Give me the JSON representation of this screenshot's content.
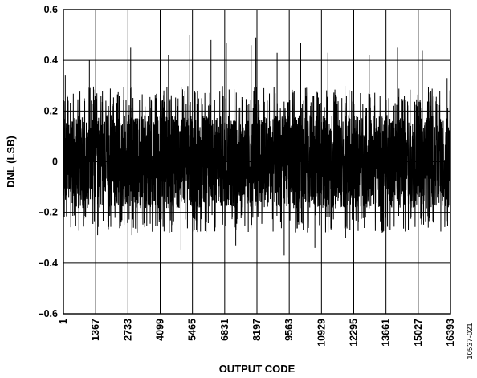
{
  "chart_data": {
    "type": "line",
    "title": "",
    "xlabel": "OUTPUT CODE",
    "ylabel": "DNL (LSB)",
    "xlim": [
      1,
      16393
    ],
    "ylim": [
      -0.6,
      0.6
    ],
    "x_ticks": [
      1,
      1367,
      2733,
      4099,
      5465,
      6831,
      8197,
      9563,
      10929,
      12295,
      13661,
      15027,
      16393
    ],
    "x_tick_labels": [
      "1",
      "1367",
      "2733",
      "4099",
      "5465",
      "6831",
      "8197",
      "9563",
      "10929",
      "12295",
      "13661",
      "15027",
      "16393"
    ],
    "y_ticks": [
      -0.6,
      -0.4,
      -0.2,
      0,
      0.2,
      0.4,
      0.6
    ],
    "y_tick_labels": [
      "–0.6",
      "–0.4",
      "–0.2",
      "0",
      "0.2",
      "0.4",
      "0.6"
    ],
    "grid": true,
    "figure_id": "10537-021",
    "series": [
      {
        "color": "#000000",
        "noise_envelope": {
          "dense_band": [
            -0.16,
            0.16
          ],
          "typical_peaks": [
            -0.28,
            0.3
          ],
          "max": 0.5,
          "min": -0.37
        },
        "notable_spikes": [
          {
            "x": 80,
            "y": 0.34
          },
          {
            "x": 1100,
            "y": 0.4
          },
          {
            "x": 1450,
            "y": -0.29
          },
          {
            "x": 2850,
            "y": 0.45
          },
          {
            "x": 2900,
            "y": -0.29
          },
          {
            "x": 4450,
            "y": 0.42
          },
          {
            "x": 4980,
            "y": -0.35
          },
          {
            "x": 5350,
            "y": 0.5
          },
          {
            "x": 6250,
            "y": 0.48
          },
          {
            "x": 6900,
            "y": 0.47
          },
          {
            "x": 7300,
            "y": -0.33
          },
          {
            "x": 7950,
            "y": 0.46
          },
          {
            "x": 8150,
            "y": 0.49
          },
          {
            "x": 9050,
            "y": 0.43
          },
          {
            "x": 9350,
            "y": -0.37
          },
          {
            "x": 10050,
            "y": 0.47
          },
          {
            "x": 10650,
            "y": -0.34
          },
          {
            "x": 11200,
            "y": 0.43
          },
          {
            "x": 11950,
            "y": -0.3
          },
          {
            "x": 12950,
            "y": 0.42
          },
          {
            "x": 13500,
            "y": -0.28
          },
          {
            "x": 14150,
            "y": 0.45
          },
          {
            "x": 15200,
            "y": 0.44
          },
          {
            "x": 15450,
            "y": -0.26
          },
          {
            "x": 16250,
            "y": 0.33
          }
        ]
      }
    ]
  }
}
